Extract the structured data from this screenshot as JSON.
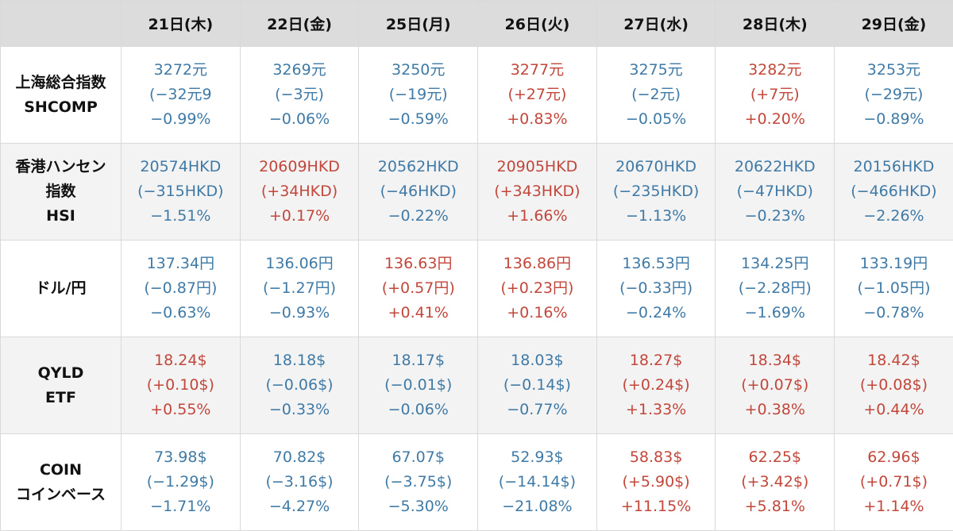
{
  "colors": {
    "down": "#3f7aa6",
    "up": "#c2473b",
    "header_bg": "#dcdcdc"
  },
  "header": {
    "corner": "",
    "dates": [
      "21日(木)",
      "22日(金)",
      "25日(月)",
      "26日(火)",
      "27日(水)",
      "28日(木)",
      "29日(金)"
    ]
  },
  "rows": [
    {
      "label": [
        "上海総合指数",
        "SHCOMP"
      ],
      "cells": [
        {
          "dir": "down",
          "lines": [
            "3272元",
            "(−32元9",
            "−0.99%"
          ]
        },
        {
          "dir": "down",
          "lines": [
            "3269元",
            "(−3元)",
            "−0.06%"
          ]
        },
        {
          "dir": "down",
          "lines": [
            "3250元",
            "(−19元)",
            "−0.59%"
          ]
        },
        {
          "dir": "up",
          "lines": [
            "3277元",
            "(+27元)",
            "+0.83%"
          ]
        },
        {
          "dir": "down",
          "lines": [
            "3275元",
            "(−2元)",
            "−0.05%"
          ]
        },
        {
          "dir": "up",
          "lines": [
            "3282元",
            "(+7元)",
            "+0.20%"
          ]
        },
        {
          "dir": "down",
          "lines": [
            "3253元",
            "(−29元)",
            "−0.89%"
          ]
        }
      ]
    },
    {
      "label": [
        "香港ハンセン",
        "指数",
        "HSI"
      ],
      "cells": [
        {
          "dir": "down",
          "lines": [
            "20574HKD",
            "(−315HKD)",
            "−1.51%"
          ]
        },
        {
          "dir": "up",
          "lines": [
            "20609HKD",
            "(+34HKD)",
            "+0.17%"
          ]
        },
        {
          "dir": "down",
          "lines": [
            "20562HKD",
            "(−46HKD)",
            "−0.22%"
          ]
        },
        {
          "dir": "up",
          "lines": [
            "20905HKD",
            "(+343HKD)",
            "+1.66%"
          ]
        },
        {
          "dir": "down",
          "lines": [
            "20670HKD",
            "(−235HKD)",
            "−1.13%"
          ]
        },
        {
          "dir": "down",
          "lines": [
            "20622HKD",
            "(−47HKD)",
            "−0.23%"
          ]
        },
        {
          "dir": "down",
          "lines": [
            "20156HKD",
            "(−466HKD)",
            "−2.26%"
          ]
        }
      ]
    },
    {
      "label": [
        "ドル/円"
      ],
      "cells": [
        {
          "dir": "down",
          "lines": [
            "137.34円",
            "(−0.87円)",
            "−0.63%"
          ]
        },
        {
          "dir": "down",
          "lines": [
            "136.06円",
            "(−1.27円)",
            "−0.93%"
          ]
        },
        {
          "dir": "up",
          "lines": [
            "136.63円",
            "(+0.57円)",
            "+0.41%"
          ]
        },
        {
          "dir": "up",
          "lines": [
            "136.86円",
            "(+0.23円)",
            "+0.16%"
          ]
        },
        {
          "dir": "down",
          "lines": [
            "136.53円",
            "(−0.33円)",
            "−0.24%"
          ]
        },
        {
          "dir": "down",
          "lines": [
            "134.25円",
            "(−2.28円)",
            "−1.69%"
          ]
        },
        {
          "dir": "down",
          "lines": [
            "133.19円",
            "(−1.05円)",
            "−0.78%"
          ]
        }
      ]
    },
    {
      "label": [
        "QYLD",
        "ETF"
      ],
      "cells": [
        {
          "dir": "up",
          "lines": [
            "18.24$",
            "(+0.10$)",
            "+0.55%"
          ]
        },
        {
          "dir": "down",
          "lines": [
            "18.18$",
            "(−0.06$)",
            "−0.33%"
          ]
        },
        {
          "dir": "down",
          "lines": [
            "18.17$",
            "(−0.01$)",
            "−0.06%"
          ]
        },
        {
          "dir": "down",
          "lines": [
            "18.03$",
            "(−0.14$)",
            "−0.77%"
          ]
        },
        {
          "dir": "up",
          "lines": [
            "18.27$",
            "(+0.24$)",
            "+1.33%"
          ]
        },
        {
          "dir": "up",
          "lines": [
            "18.34$",
            "(+0.07$)",
            "+0.38%"
          ]
        },
        {
          "dir": "up",
          "lines": [
            "18.42$",
            "(+0.08$)",
            "+0.44%"
          ]
        }
      ]
    },
    {
      "label": [
        "COIN",
        "コインベース"
      ],
      "cells": [
        {
          "dir": "down",
          "lines": [
            "73.98$",
            "(−1.29$)",
            "−1.71%"
          ]
        },
        {
          "dir": "down",
          "lines": [
            "70.82$",
            "(−3.16$)",
            "−4.27%"
          ]
        },
        {
          "dir": "down",
          "lines": [
            "67.07$",
            "(−3.75$)",
            "−5.30%"
          ]
        },
        {
          "dir": "down",
          "lines": [
            "52.93$",
            "(−14.14$)",
            "−21.08%"
          ]
        },
        {
          "dir": "up",
          "lines": [
            "58.83$",
            "(+5.90$)",
            "+11.15%"
          ]
        },
        {
          "dir": "up",
          "lines": [
            "62.25$",
            "(+3.42$)",
            "+5.81%"
          ]
        },
        {
          "dir": "up",
          "lines": [
            "62.96$",
            "(+0.71$)",
            "+1.14%"
          ]
        }
      ]
    }
  ]
}
